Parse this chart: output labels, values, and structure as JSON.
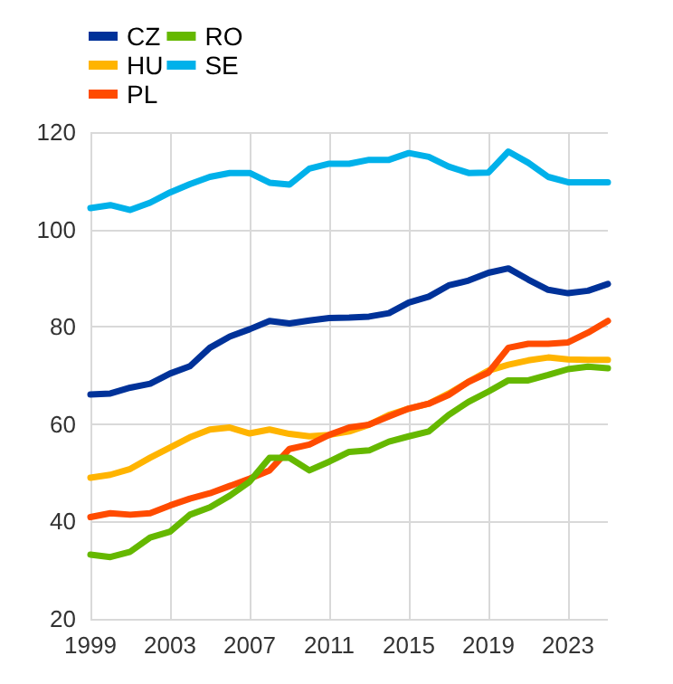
{
  "chart_data": {
    "type": "line",
    "x": [
      1999,
      2000,
      2001,
      2002,
      2003,
      2004,
      2005,
      2006,
      2007,
      2008,
      2009,
      2010,
      2011,
      2012,
      2013,
      2014,
      2015,
      2016,
      2017,
      2018,
      2019,
      2020,
      2021,
      2022,
      2023,
      2024,
      2025
    ],
    "series": [
      {
        "name": "CZ",
        "color": "#003299",
        "values": [
          66.1,
          66.3,
          67.5,
          68.3,
          70.4,
          71.9,
          75.7,
          78,
          79.5,
          81.2,
          80.7,
          81.3,
          81.8,
          81.9,
          82.1,
          82.8,
          85,
          86.2,
          88.5,
          89.5,
          91.1,
          92,
          89.7,
          87.6,
          86.9,
          87.4,
          88.8
        ]
      },
      {
        "name": "HU",
        "color": "#ffb400",
        "values": [
          49,
          49.6,
          50.8,
          53.1,
          55.2,
          57.3,
          58.9,
          59.3,
          58.1,
          58.9,
          58,
          57.5,
          57.8,
          58.5,
          59.9,
          61.9,
          63.2,
          64.2,
          66.3,
          68.7,
          71,
          72.2,
          73.1,
          73.7,
          73.3,
          73.2,
          73.2
        ]
      },
      {
        "name": "PL",
        "color": "#ff4b00",
        "values": [
          40.9,
          41.7,
          41.4,
          41.7,
          43.3,
          44.7,
          45.8,
          47.3,
          48.8,
          50.5,
          54.9,
          55.8,
          57.8,
          59.3,
          59.9,
          61.6,
          63.2,
          64.2,
          66,
          68.7,
          70.6,
          75.7,
          76.5,
          76.5,
          76.8,
          78.8,
          81.2
        ]
      },
      {
        "name": "RO",
        "color": "#65b800",
        "values": [
          33.2,
          32.7,
          33.8,
          36.7,
          37.9,
          41.4,
          42.9,
          45.3,
          48.2,
          53.1,
          53.1,
          50.5,
          52.3,
          54.3,
          54.6,
          56.4,
          57.5,
          58.5,
          61.9,
          64.6,
          66.7,
          69,
          69,
          70.1,
          71.3,
          71.8,
          71.5
        ]
      },
      {
        "name": "SE",
        "color": "#00b1ea",
        "values": [
          104.4,
          105,
          104,
          105.5,
          107.6,
          109.3,
          110.8,
          111.6,
          111.6,
          109.6,
          109.2,
          112.5,
          113.5,
          113.5,
          114.3,
          114.3,
          115.7,
          114.9,
          112.9,
          111.6,
          111.7,
          116,
          113.7,
          110.8,
          109.7,
          109.7,
          109.7
        ]
      }
    ],
    "xlim": [
      1999,
      2025
    ],
    "xticks": [
      1999,
      2003,
      2007,
      2011,
      2015,
      2019,
      2023
    ],
    "ylim": [
      20,
      120
    ],
    "yticks": [
      20,
      40,
      60,
      80,
      100,
      120
    ],
    "grid": true,
    "legend": "top left",
    "marker": "none",
    "line_style": "solid"
  }
}
